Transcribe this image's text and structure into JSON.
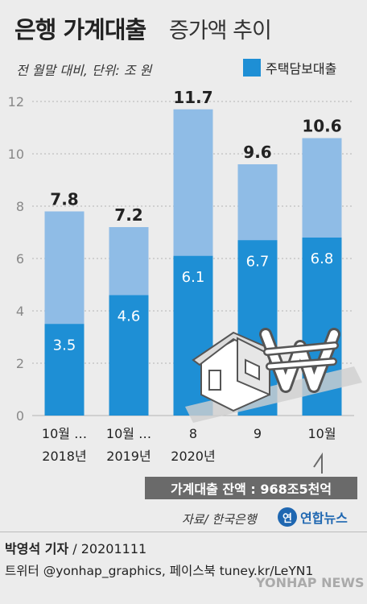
{
  "header": {
    "title_main": "은행 가계대출",
    "title_sub": "증가액 추이",
    "unit_note": "전 월말 대비, 단위: 조 원",
    "legend_label": "주택담보대출"
  },
  "colors": {
    "total": "#8fbce6",
    "mortgage": "#1e8fd5",
    "balance_box": "#6a6a6a"
  },
  "chart_data": {
    "type": "bar",
    "categories": [
      [
        "10월 …",
        "2018년"
      ],
      [
        "10월 …",
        "2019년"
      ],
      [
        "8",
        "2020년"
      ],
      [
        "9",
        ""
      ],
      [
        "10월",
        ""
      ]
    ],
    "series": [
      {
        "name": "",
        "values": [
          7.8,
          7.2,
          11.7,
          9.6,
          10.6
        ]
      },
      {
        "name": "주택담보대출",
        "values": [
          3.5,
          4.6,
          6.1,
          6.7,
          6.8
        ]
      }
    ],
    "total_labels": [
      "7.8",
      "7.2",
      "11.7",
      "9.6",
      "10.6"
    ],
    "mortgage_labels": [
      "3.5",
      "4.6",
      "6.1",
      "6.7",
      "6.8"
    ],
    "yticks": [
      0,
      2,
      4,
      6,
      8,
      10,
      12
    ],
    "ylim": [
      0,
      12.5
    ],
    "stacking": "overlay"
  },
  "balance_note": "가계대출 잔액 : 968조5천억",
  "footer": {
    "source": "자료/ 한국은행",
    "logo_text": "연합뉴스",
    "reporter": "박영석 기자",
    "date": "/ 20201111",
    "social": "트위터 @yonhap_graphics, 페이스북 tuney.kr/LeYN1",
    "watermark": "YONHAP NEWS"
  }
}
